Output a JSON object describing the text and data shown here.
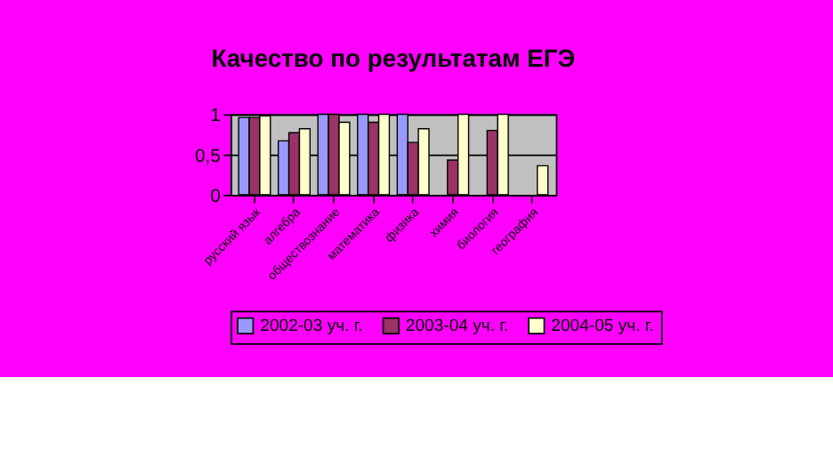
{
  "chart_data": {
    "type": "bar",
    "title": "Качество по результатам ЕГЭ",
    "categories": [
      "русский язык",
      "алгебра",
      "обществознание",
      "математика",
      "физика",
      "химия",
      "биология",
      "география"
    ],
    "series": [
      {
        "name": "2002-03 уч. г.",
        "color": "#9999ff",
        "values": [
          0.96,
          0.67,
          1,
          1,
          1,
          null,
          null,
          null
        ]
      },
      {
        "name": "2003-04 уч. г.",
        "color": "#993366",
        "values": [
          0.96,
          0.77,
          1,
          0.9,
          0.65,
          0.43,
          0.8,
          null
        ]
      },
      {
        "name": "2004-05 уч. г.",
        "color": "#ffffcc",
        "values": [
          0.98,
          0.82,
          0.9,
          1,
          0.82,
          1,
          1,
          0.36
        ]
      }
    ],
    "ylim": [
      0,
      1
    ],
    "yticks": [
      0,
      {
        "value": 0.5,
        "label": "0,5"
      },
      1
    ],
    "grid": "y",
    "legend": "bottom"
  }
}
